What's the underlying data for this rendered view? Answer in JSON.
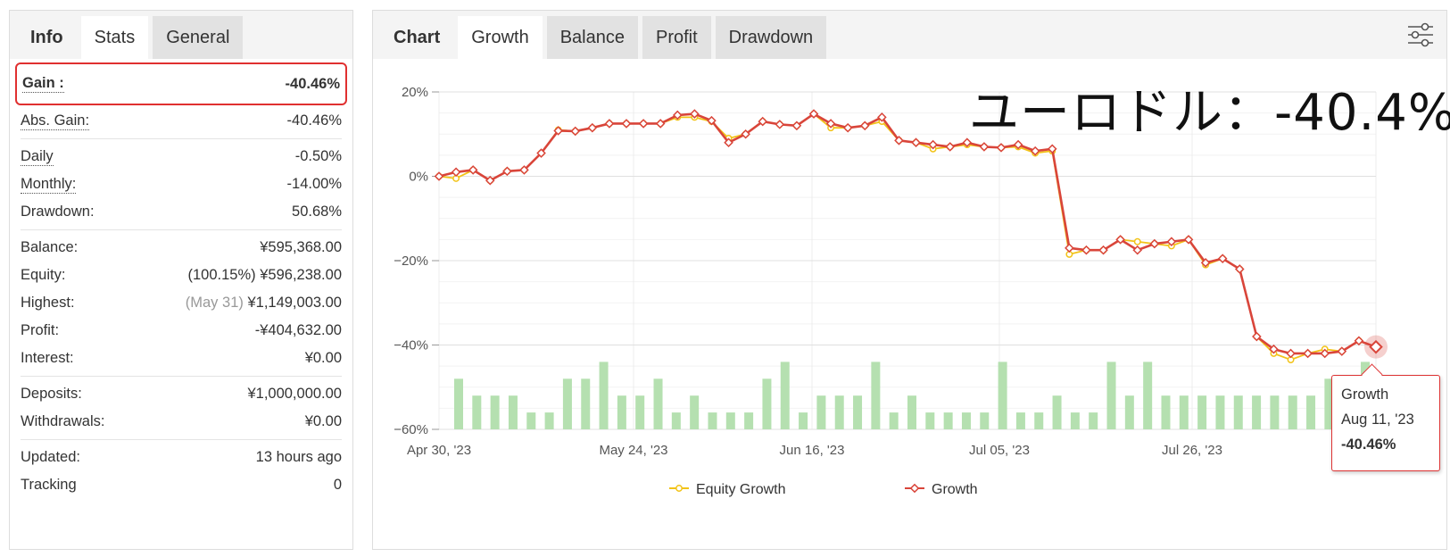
{
  "left_panel": {
    "tabs": [
      {
        "label": "Info"
      },
      {
        "label": "Stats"
      },
      {
        "label": "General"
      }
    ],
    "gain": {
      "label": "Gain :",
      "value": "-40.46%"
    },
    "abs_gain": {
      "label": "Abs. Gain:",
      "value": "-40.46%"
    },
    "daily": {
      "label": "Daily",
      "value": "-0.50%"
    },
    "monthly": {
      "label": "Monthly:",
      "value": "-14.00%"
    },
    "drawdown": {
      "label": "Drawdown:",
      "value": "50.68%"
    },
    "balance": {
      "label": "Balance:",
      "value": "¥595,368.00"
    },
    "equity": {
      "label": "Equity:",
      "note": "(100.15%)",
      "value": "¥596,238.00"
    },
    "highest": {
      "label": "Highest:",
      "note": "(May 31)",
      "value": "¥1,149,003.00"
    },
    "profit": {
      "label": "Profit:",
      "value": "-¥404,632.00"
    },
    "interest": {
      "label": "Interest:",
      "value": "¥0.00"
    },
    "deposits": {
      "label": "Deposits:",
      "value": "¥1,000,000.00"
    },
    "withdrawals": {
      "label": "Withdrawals:",
      "value": "¥0.00"
    },
    "updated": {
      "label": "Updated:",
      "value": "13 hours ago"
    },
    "tracking": {
      "label": "Tracking",
      "value": "0"
    }
  },
  "right_panel": {
    "tabs": [
      {
        "label": "Chart"
      },
      {
        "label": "Growth"
      },
      {
        "label": "Balance"
      },
      {
        "label": "Profit"
      },
      {
        "label": "Drawdown"
      }
    ],
    "settings_icon": "sliders-icon",
    "overlay_text": "ユーロドル：-40.4%",
    "tooltip": {
      "series": "Growth",
      "date": "Aug 11, '23",
      "value": "-40.46%"
    }
  },
  "colors": {
    "growth": "#d9453a",
    "equity": "#f2c318",
    "bars": "#b5e0b0",
    "gain_red": "#e04040"
  },
  "chart_data": {
    "type": "line",
    "x_tick_labels": [
      "Apr 30, '23",
      "May 24, '23",
      "Jun 16, '23",
      "Jul 05, '23",
      "Jul 26, '23"
    ],
    "y_tick_labels": [
      "20%",
      "0%",
      "-20%",
      "-40%",
      "-60%"
    ],
    "ylim": [
      -60,
      20
    ],
    "grid": true,
    "legend": {
      "position": "bottom",
      "entries": [
        "Equity Growth",
        "Growth"
      ]
    },
    "series": [
      {
        "name": "Growth",
        "values": [
          0,
          1,
          1.5,
          -1,
          1.2,
          1.5,
          5.5,
          10.8,
          10.7,
          11.5,
          12.5,
          12.5,
          12.5,
          12.5,
          14.5,
          14.8,
          13.2,
          8,
          10,
          13,
          12.3,
          12,
          14.8,
          12.5,
          11.5,
          12,
          14,
          8.5,
          8,
          7.5,
          7,
          8,
          7,
          6.8,
          7.5,
          6,
          6.5,
          -17,
          -17.5,
          -17.5,
          -15,
          -17.5,
          -16,
          -15.5,
          -15,
          -20.5,
          -19.5,
          -22,
          -38,
          -41,
          -42,
          -42,
          -42,
          -41.5,
          -39,
          -40.46
        ]
      },
      {
        "name": "Equity Growth",
        "values": [
          0,
          -0.5,
          1.5,
          -1,
          1.2,
          1.5,
          5.5,
          11,
          10.7,
          11.5,
          12.5,
          12.5,
          12.5,
          12.5,
          14,
          14,
          13,
          9,
          10,
          13,
          12.3,
          12,
          14.8,
          11.5,
          11.5,
          12,
          13,
          8.5,
          8,
          6.5,
          7,
          7.5,
          7,
          6.8,
          7,
          5.5,
          6,
          -18.5,
          -17.5,
          -17.5,
          -15,
          -15.5,
          -16,
          -16.5,
          -15,
          -21,
          -19.5,
          -22,
          -38,
          -42,
          -43.5,
          -42,
          -41,
          -41.5,
          -39,
          -40.46
        ]
      },
      {
        "name": "bars",
        "values": [
          -48,
          -52,
          -52,
          -52,
          -56,
          -56,
          -48,
          -48,
          -44,
          -52,
          -52,
          -48,
          -56,
          -52,
          -56,
          -56,
          -56,
          -48,
          -44,
          -56,
          -52,
          -52,
          -52,
          -44,
          -56,
          -52,
          -56,
          -56,
          -56,
          -56,
          -44,
          -56,
          -56,
          -52,
          -56,
          -56,
          -44,
          -52,
          -44,
          -52,
          -52,
          -52,
          -52,
          -52,
          -52,
          -52,
          -52,
          -52,
          -48,
          -52,
          -44
        ]
      }
    ]
  }
}
